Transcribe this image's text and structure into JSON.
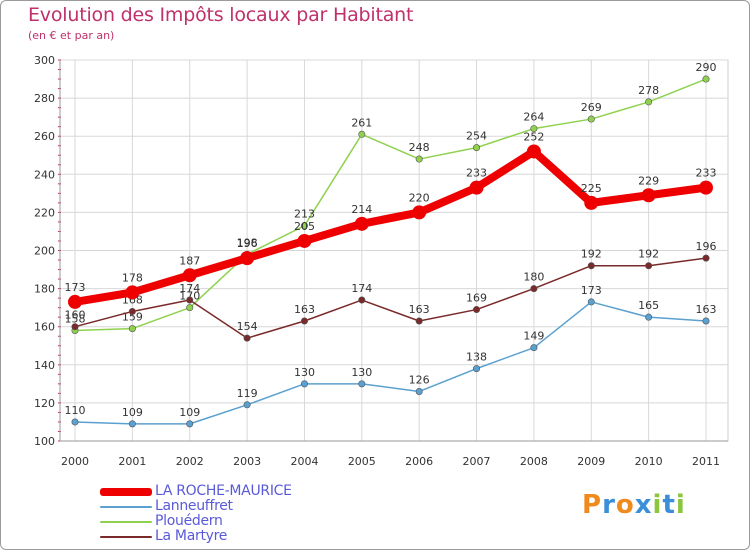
{
  "chart_data": {
    "type": "line",
    "title": "Evolution des Impôts locaux par Habitant",
    "subtitle": "(en € et par an)",
    "x": [
      "2000",
      "2001",
      "2002",
      "2003",
      "2004",
      "2005",
      "2006",
      "2007",
      "2008",
      "2009",
      "2010",
      "2011"
    ],
    "ylim": [
      100,
      300
    ],
    "yticks": [
      100,
      120,
      140,
      160,
      180,
      200,
      220,
      240,
      260,
      280,
      300
    ],
    "grid": true,
    "legend_position": "bottom-left",
    "series": [
      {
        "name": "Plouédern",
        "color": "#8fd14f",
        "values": [
          158,
          159,
          170,
          198,
          213,
          261,
          248,
          254,
          264,
          269,
          278,
          290
        ]
      },
      {
        "name": "Lanneuffret",
        "color": "#5aa0d0",
        "values": [
          110,
          109,
          109,
          119,
          130,
          130,
          126,
          138,
          149,
          173,
          165,
          163
        ]
      },
      {
        "name": "La Martyre",
        "color": "#7a2a2a",
        "values": [
          160,
          168,
          174,
          154,
          163,
          174,
          163,
          169,
          180,
          192,
          192,
          196
        ]
      },
      {
        "name": "LA ROCHE-MAURICE",
        "color": "#ee0000",
        "values": [
          173,
          178,
          187,
          196,
          205,
          214,
          220,
          233,
          252,
          225,
          229,
          233
        ]
      }
    ],
    "legend": [
      {
        "name": "LA ROCHE-MAURICE",
        "color": "#ee0000"
      },
      {
        "name": "Lanneuffret",
        "color": "#5aa0d0"
      },
      {
        "name": "Plouédern",
        "color": "#8fd14f"
      },
      {
        "name": "La Martyre",
        "color": "#7a2a2a"
      }
    ]
  },
  "brand": {
    "logo_text": "Proxiti",
    "letters": [
      {
        "ch": "P",
        "color": "#f08a1c"
      },
      {
        "ch": "r",
        "color": "#3a8fd8"
      },
      {
        "ch": "o",
        "color": "#f08a1c"
      },
      {
        "ch": "x",
        "color": "#3a8fd8"
      },
      {
        "ch": "i",
        "color": "#8cc63f"
      },
      {
        "ch": "t",
        "color": "#3a8fd8"
      },
      {
        "ch": "i",
        "color": "#8cc63f"
      }
    ]
  }
}
